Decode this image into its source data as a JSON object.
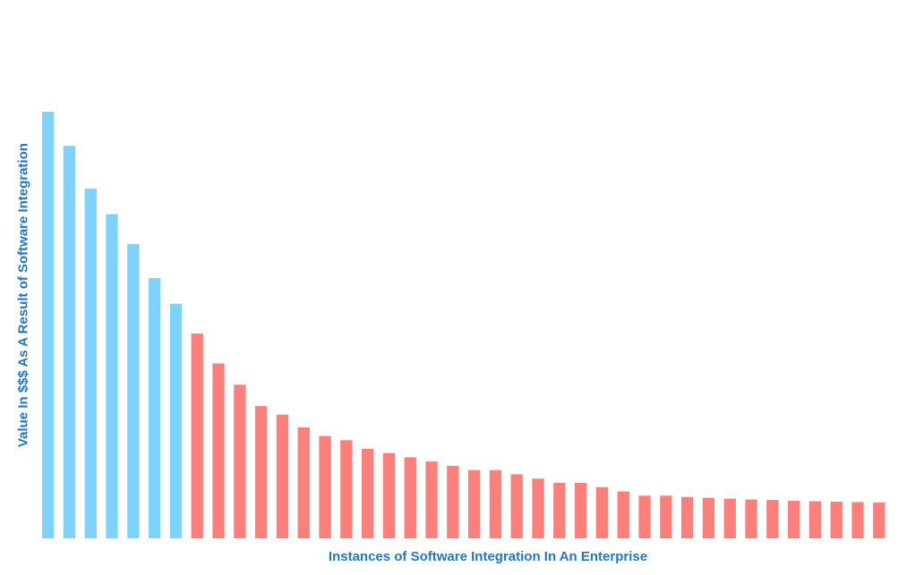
{
  "chart_data": {
    "type": "bar",
    "title": "",
    "xlabel": "Instances of Software Integration In An Enterprise",
    "ylabel": "Value In $$$ As A Result of Software Integration",
    "ylim": [
      0,
      100
    ],
    "grid": false,
    "legend": "none",
    "colors": {
      "highlight": "#7dd3fc",
      "rest": "#fb7f7a"
    },
    "highlight_count": 7,
    "values": [
      100,
      92,
      82,
      76,
      69,
      61,
      55,
      48,
      41,
      36,
      31,
      29,
      26,
      24,
      23,
      21,
      20,
      19,
      18,
      17,
      16,
      16,
      15,
      14,
      13,
      13,
      12,
      11,
      10,
      10,
      9.7,
      9.5,
      9.3,
      9.1,
      9.0,
      8.8,
      8.7,
      8.6,
      8.5,
      8.4
    ]
  }
}
